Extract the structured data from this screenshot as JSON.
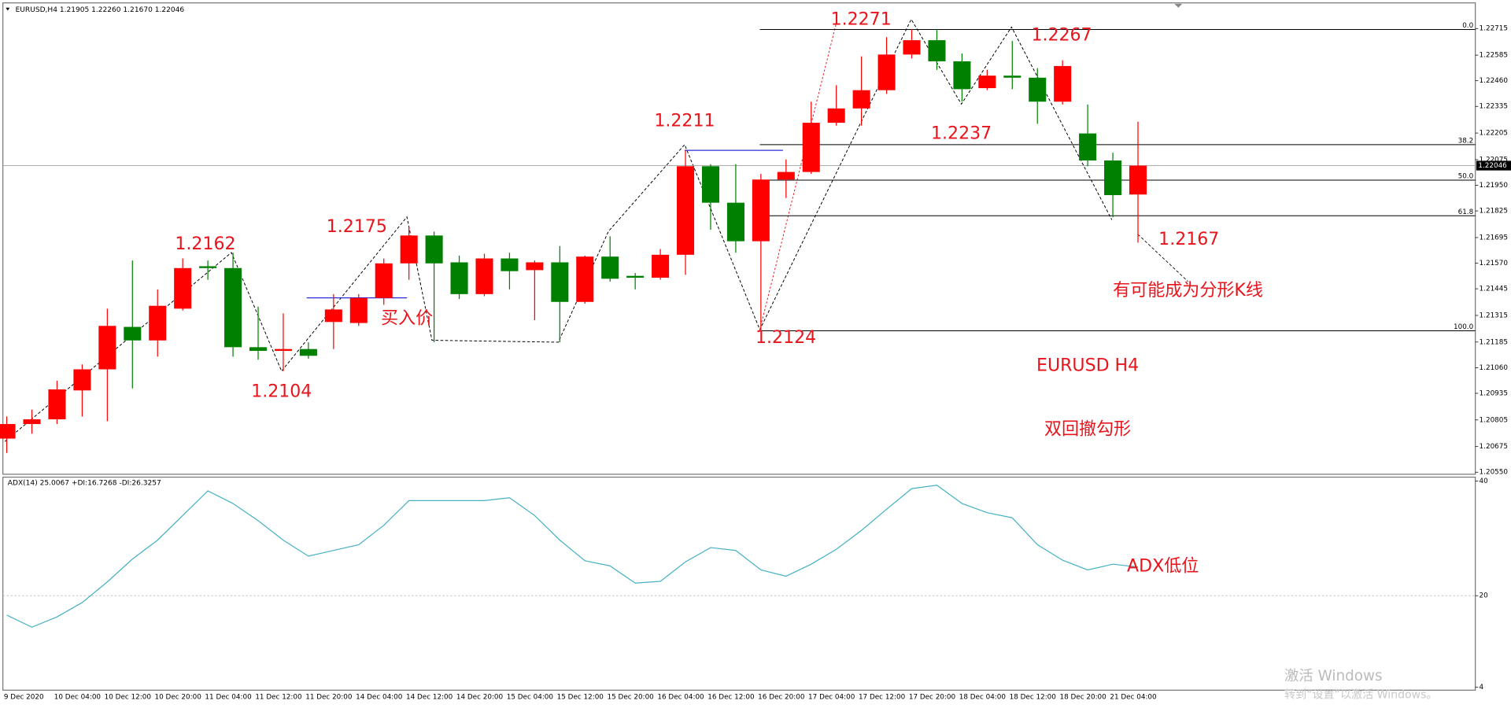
{
  "chart_data": [
    {
      "type": "candlestick",
      "title": "EURUSD,H4  1.21905 1.22260 1.21670 1.22046",
      "categories": [
        "9 Dec 2020",
        null,
        "10 Dec 04:00",
        null,
        "10 Dec 12:00",
        null,
        "10 Dec 20:00",
        null,
        "11 Dec 04:00",
        null,
        "11 Dec 12:00",
        null,
        "11 Dec 20:00",
        null,
        "14 Dec 04:00",
        null,
        "14 Dec 12:00",
        null,
        "14 Dec 20:00",
        null,
        "15 Dec 04:00",
        null,
        "15 Dec 12:00",
        null,
        "15 Dec 20:00",
        null,
        "16 Dec 04:00",
        null,
        "16 Dec 12:00",
        null,
        "16 Dec 20:00",
        null,
        "17 Dec 04:00",
        null,
        "17 Dec 12:00",
        null,
        "17 Dec 20:00",
        null,
        "18 Dec 04:00",
        null,
        "18 Dec 12:00",
        null,
        "18 Dec 20:00",
        null,
        "21 Dec 04:00",
        null
      ],
      "open": [
        1.20714,
        1.20785,
        1.20808,
        1.20949,
        1.21052,
        1.21259,
        1.21193,
        1.21348,
        1.21555,
        1.21546,
        1.2116,
        1.21142,
        1.21151,
        1.21283,
        1.21278,
        1.214,
        1.21569,
        1.21705,
        1.21574,
        1.21419,
        1.21593,
        1.21536,
        1.21574,
        1.21381,
        1.21602,
        1.21508,
        1.21499,
        1.21611,
        1.22043,
        1.21865,
        1.21677,
        1.21978,
        1.22015,
        1.22255,
        1.22325,
        1.22414,
        1.22588,
        1.22658,
        1.22555,
        1.22424,
        1.22485,
        1.22475,
        1.22358,
        1.22203,
        1.22071,
        1.21905
      ],
      "high": [
        1.20822,
        1.20855,
        1.20996,
        1.21076,
        1.21348,
        1.21583,
        1.21442,
        1.21593,
        1.21583,
        1.21621,
        1.21358,
        1.21325,
        1.21184,
        1.21419,
        1.21419,
        1.21593,
        1.21747,
        1.21724,
        1.21607,
        1.21616,
        1.21621,
        1.21583,
        1.21654,
        1.21607,
        1.21701,
        1.21522,
        1.21639,
        1.22123,
        1.22053,
        1.22053,
        1.22006,
        1.22076,
        1.22358,
        1.22438,
        1.22579,
        1.22673,
        1.22712,
        1.2271,
        1.22593,
        1.22513,
        1.22654,
        1.22522,
        1.2256,
        1.22344,
        1.22109,
        1.2226
      ],
      "low": [
        1.20644,
        1.20738,
        1.20785,
        1.20822,
        1.20799,
        1.20959,
        1.21114,
        1.21339,
        1.21489,
        1.21114,
        1.21099,
        1.21043,
        1.21104,
        1.21151,
        1.21264,
        1.21367,
        1.21489,
        1.21184,
        1.21395,
        1.21409,
        1.21442,
        1.21292,
        1.21184,
        1.21372,
        1.2148,
        1.21442,
        1.21489,
        1.21513,
        1.21733,
        1.21621,
        1.21245,
        1.21888,
        1.22006,
        1.22241,
        1.22241,
        1.22396,
        1.22569,
        1.22513,
        1.22358,
        1.22414,
        1.22419,
        1.2225,
        1.22344,
        1.22043,
        1.21794,
        1.2167
      ],
      "close": [
        1.20785,
        1.20808,
        1.20954,
        1.21052,
        1.21264,
        1.21193,
        1.21362,
        1.21546,
        1.21546,
        1.2116,
        1.21142,
        1.21151,
        1.21118,
        1.21344,
        1.214,
        1.21569,
        1.21705,
        1.21569,
        1.21419,
        1.21593,
        1.21531,
        1.21574,
        1.21381,
        1.21602,
        1.21494,
        1.21499,
        1.21611,
        1.22043,
        1.21865,
        1.21677,
        1.21978,
        1.22015,
        1.22255,
        1.22325,
        1.22414,
        1.22588,
        1.22658,
        1.22555,
        1.22419,
        1.22485,
        1.22475,
        1.22358,
        1.22532,
        1.22071,
        1.21902,
        1.22046
      ],
      "up_color": "#ff0000",
      "down_color": "#008000",
      "ylim": [
        1.2054,
        1.2284
      ],
      "yticks": [
        {
          "value": 1.2055,
          "label": "1.20550"
        },
        1.20675,
        1.20805,
        1.20935,
        {
          "value": 1.2106,
          "label": "1.21060"
        },
        1.21185,
        1.21315,
        1.21445,
        {
          "value": 1.2157,
          "label": "1.21570"
        },
        1.21695,
        1.21825,
        {
          "value": 1.2195,
          "label": "1.21950"
        },
        1.22075,
        1.22205,
        1.22335,
        {
          "value": 1.2246,
          "label": "1.22460"
        },
        1.22585,
        1.22715
      ],
      "current_price": 1.22046,
      "fibonacci": {
        "range": [
          1.2271,
          1.2124
        ],
        "levels": [
          {
            "value": 0,
            "label": "0.0"
          },
          38.2,
          {
            "value": 50,
            "label": "50.0"
          },
          61.8,
          {
            "value": 100,
            "label": "100.0"
          }
        ]
      },
      "annotations": [
        "1.2162",
        "1.2175",
        "1.2104",
        "1.2211",
        "1.2124",
        "1.2271",
        "1.2267",
        "1.2237",
        "1.2167",
        "买入价",
        "有可能成为分形K线",
        "EURUSD H4",
        "双回撤勾形"
      ]
    },
    {
      "type": "line",
      "title": "ADX(14) 25.0067 +DI:16.7268 -DI:26.3257",
      "values": [
        16.6,
        14.5,
        16.3,
        18.8,
        22.4,
        26.4,
        29.7,
        34.0,
        38.3,
        36.1,
        33.1,
        29.7,
        26.9,
        27.9,
        28.9,
        32.3,
        36.6,
        36.6,
        36.6,
        36.6,
        37.1,
        34.0,
        29.7,
        26.1,
        25.2,
        22.2,
        22.5,
        25.9,
        28.4,
        27.9,
        24.5,
        23.4,
        25.5,
        28.1,
        31.4,
        35.1,
        38.7,
        39.3,
        36.1,
        34.5,
        33.6,
        28.9,
        26.2,
        24.5,
        25.5,
        25.0067
      ],
      "color": "#46b1c4",
      "ylim": [
        3.5,
        40.7
      ],
      "yticks": [
        4,
        20,
        40
      ],
      "level_lines": [
        20
      ],
      "annotations": [
        "ADX低位"
      ]
    }
  ],
  "watermark": {
    "title": "激活 Windows",
    "subtitle": "转到“设置”以激活 Windows。"
  }
}
